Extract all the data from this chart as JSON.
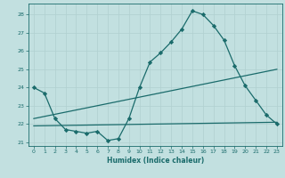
{
  "title": "",
  "xlabel": "Humidex (Indice chaleur)",
  "bg_color": "#c2e0e0",
  "grid_color": "#b0d0d0",
  "line_color": "#1a6b6b",
  "xlim": [
    -0.5,
    23.5
  ],
  "ylim": [
    20.8,
    28.6
  ],
  "yticks": [
    21,
    22,
    23,
    24,
    25,
    26,
    27,
    28
  ],
  "xticks": [
    0,
    1,
    2,
    3,
    4,
    5,
    6,
    7,
    8,
    9,
    10,
    11,
    12,
    13,
    14,
    15,
    16,
    17,
    18,
    19,
    20,
    21,
    22,
    23
  ],
  "line1_x": [
    0,
    1,
    2,
    3,
    4,
    5,
    6,
    7,
    8,
    9,
    10,
    11,
    12,
    13,
    14,
    15,
    16,
    17,
    18,
    19,
    20,
    21,
    22,
    23
  ],
  "line1_y": [
    24.0,
    23.7,
    22.3,
    21.7,
    21.6,
    21.5,
    21.6,
    21.1,
    21.2,
    22.3,
    24.0,
    25.4,
    25.9,
    26.5,
    27.2,
    28.2,
    28.0,
    27.4,
    26.6,
    25.2,
    24.1,
    23.3,
    22.5,
    22.0
  ],
  "line2_x": [
    0,
    23
  ],
  "line2_y": [
    22.3,
    25.0
  ],
  "line3_x": [
    0,
    23
  ],
  "line3_y": [
    21.9,
    22.1
  ],
  "marker": "D",
  "marker_size": 2.2,
  "linewidth": 0.9
}
